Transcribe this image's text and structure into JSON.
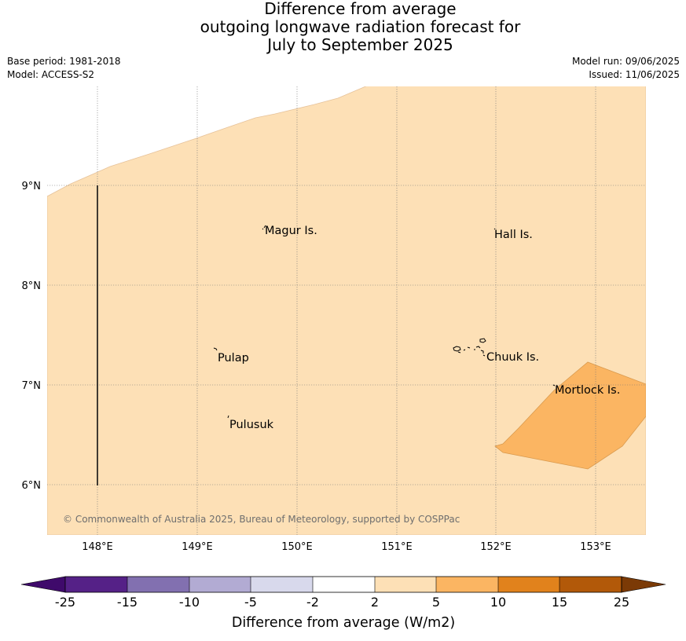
{
  "title": {
    "line1": "Difference from average",
    "line2": "outgoing longwave radiation forecast for",
    "line3": "July to September 2025"
  },
  "meta": {
    "base_period": "Base period: 1981-2018",
    "model": "Model: ACCESS-S2",
    "model_run": "Model run: 09/06/2025",
    "issued": "Issued: 11/06/2025"
  },
  "map": {
    "lon_ticks": [
      "148°E",
      "149°E",
      "150°E",
      "151°E",
      "152°E",
      "153°E"
    ],
    "lat_ticks": [
      "9°N",
      "8°N",
      "7°N",
      "6°N"
    ],
    "places": [
      {
        "name": "Magur Is."
      },
      {
        "name": "Hall Is."
      },
      {
        "name": "Pulap"
      },
      {
        "name": "Chuuk Is."
      },
      {
        "name": "Mortlock Is."
      },
      {
        "name": "Pulusuk"
      }
    ],
    "copyright": "© Commonwealth of Australia 2025, Bureau of Meteorology, supported by COSPPac",
    "colors": {
      "bin_2_5": "#fde0b6",
      "bin_5_10": "#fbb562"
    }
  },
  "colorbar": {
    "label": "Difference from average (W/m2)",
    "ticks": [
      "-25",
      "-15",
      "-10",
      "-5",
      "-2",
      "2",
      "5",
      "10",
      "15",
      "25"
    ],
    "colors": [
      "#3f0a6b",
      "#552187",
      "#8270b0",
      "#b2abd3",
      "#d8d9ec",
      "#ffffff",
      "#fde0b6",
      "#fbb562",
      "#e1821c",
      "#b25909",
      "#7b3a06"
    ]
  }
}
